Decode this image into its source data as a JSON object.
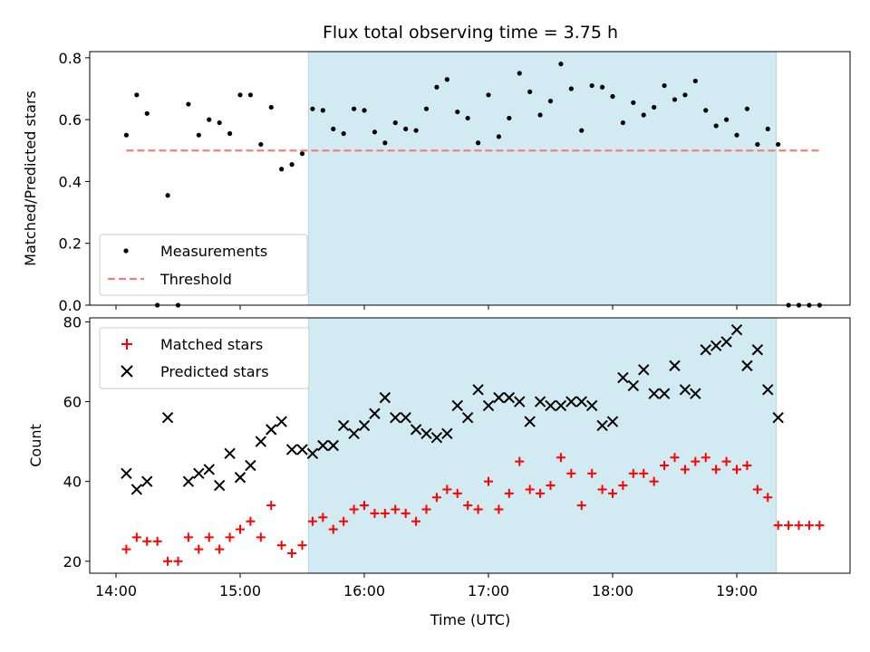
{
  "chart_data": [
    {
      "type": "scatter",
      "title": "Flux total observing time = 3.75 h",
      "xlabel": "",
      "ylabel": "Matched/Predicted stars",
      "ylim": [
        0,
        0.82
      ],
      "yticks": [
        "0.0",
        "0.2",
        "0.4",
        "0.6",
        "0.8"
      ],
      "shaded_region": {
        "x_start": "15:33",
        "x_end": "19:19",
        "color": "#add8e6"
      },
      "legend": "lower-left",
      "series": [
        {
          "name": "Measurements",
          "color": "#000000",
          "marker": "dot",
          "points": [
            [
              "14:05",
              0.55
            ],
            [
              "14:10",
              0.68
            ],
            [
              "14:15",
              0.62
            ],
            [
              "14:20",
              0.0
            ],
            [
              "14:25",
              0.355
            ],
            [
              "14:30",
              0.0
            ],
            [
              "14:35",
              0.65
            ],
            [
              "14:40",
              0.55
            ],
            [
              "14:45",
              0.6
            ],
            [
              "14:50",
              0.59
            ],
            [
              "14:55",
              0.555
            ],
            [
              "15:00",
              0.68
            ],
            [
              "15:05",
              0.68
            ],
            [
              "15:10",
              0.52
            ],
            [
              "15:15",
              0.64
            ],
            [
              "15:20",
              0.44
            ],
            [
              "15:25",
              0.455
            ],
            [
              "15:30",
              0.49
            ],
            [
              "15:35",
              0.635
            ],
            [
              "15:40",
              0.63
            ],
            [
              "15:45",
              0.57
            ],
            [
              "15:50",
              0.555
            ],
            [
              "15:55",
              0.635
            ],
            [
              "16:00",
              0.63
            ],
            [
              "16:05",
              0.56
            ],
            [
              "16:10",
              0.525
            ],
            [
              "16:15",
              0.59
            ],
            [
              "16:20",
              0.57
            ],
            [
              "16:25",
              0.565
            ],
            [
              "16:30",
              0.635
            ],
            [
              "16:35",
              0.705
            ],
            [
              "16:40",
              0.73
            ],
            [
              "16:45",
              0.625
            ],
            [
              "16:50",
              0.605
            ],
            [
              "16:55",
              0.525
            ],
            [
              "17:00",
              0.68
            ],
            [
              "17:05",
              0.545
            ],
            [
              "17:10",
              0.605
            ],
            [
              "17:15",
              0.75
            ],
            [
              "17:20",
              0.69
            ],
            [
              "17:25",
              0.615
            ],
            [
              "17:30",
              0.66
            ],
            [
              "17:35",
              0.78
            ],
            [
              "17:40",
              0.7
            ],
            [
              "17:45",
              0.565
            ],
            [
              "17:50",
              0.71
            ],
            [
              "17:55",
              0.705
            ],
            [
              "18:00",
              0.675
            ],
            [
              "18:05",
              0.59
            ],
            [
              "18:10",
              0.655
            ],
            [
              "18:15",
              0.615
            ],
            [
              "18:20",
              0.64
            ],
            [
              "18:25",
              0.71
            ],
            [
              "18:30",
              0.665
            ],
            [
              "18:35",
              0.68
            ],
            [
              "18:40",
              0.725
            ],
            [
              "18:45",
              0.63
            ],
            [
              "18:50",
              0.58
            ],
            [
              "18:55",
              0.6
            ],
            [
              "19:00",
              0.55
            ],
            [
              "19:05",
              0.635
            ],
            [
              "19:10",
              0.52
            ],
            [
              "19:15",
              0.57
            ],
            [
              "19:20",
              0.52
            ],
            [
              "19:25",
              0.0
            ],
            [
              "19:30",
              0.0
            ],
            [
              "19:35",
              0.0
            ],
            [
              "19:40",
              0.0
            ]
          ]
        },
        {
          "name": "Threshold",
          "color": "#f08080",
          "style": "dashed",
          "points": [
            [
              "14:05",
              0.5
            ],
            [
              "19:40",
              0.5
            ]
          ]
        }
      ]
    },
    {
      "type": "scatter",
      "title": "",
      "xlabel": "Time (UTC)",
      "ylabel": "Count",
      "ylim": [
        17,
        81
      ],
      "yticks": [
        "20",
        "40",
        "60",
        "80"
      ],
      "xticks": [
        "14:00",
        "15:00",
        "16:00",
        "17:00",
        "18:00",
        "19:00"
      ],
      "shaded_region": {
        "x_start": "15:33",
        "x_end": "19:19",
        "color": "#add8e6"
      },
      "legend": "upper-left",
      "series": [
        {
          "name": "Matched stars",
          "color": "#ff0000",
          "marker": "plus",
          "points": [
            [
              "14:05",
              23
            ],
            [
              "14:10",
              26
            ],
            [
              "14:15",
              25
            ],
            [
              "14:20",
              25
            ],
            [
              "14:25",
              20
            ],
            [
              "14:30",
              20
            ],
            [
              "14:35",
              26
            ],
            [
              "14:40",
              23
            ],
            [
              "14:45",
              26
            ],
            [
              "14:50",
              23
            ],
            [
              "14:55",
              26
            ],
            [
              "15:00",
              28
            ],
            [
              "15:05",
              30
            ],
            [
              "15:10",
              26
            ],
            [
              "15:15",
              34
            ],
            [
              "15:20",
              24
            ],
            [
              "15:25",
              22
            ],
            [
              "15:30",
              24
            ],
            [
              "15:35",
              30
            ],
            [
              "15:40",
              31
            ],
            [
              "15:45",
              28
            ],
            [
              "15:50",
              30
            ],
            [
              "15:55",
              33
            ],
            [
              "16:00",
              34
            ],
            [
              "16:05",
              32
            ],
            [
              "16:10",
              32
            ],
            [
              "16:15",
              33
            ],
            [
              "16:20",
              32
            ],
            [
              "16:25",
              30
            ],
            [
              "16:30",
              33
            ],
            [
              "16:35",
              36
            ],
            [
              "16:40",
              38
            ],
            [
              "16:45",
              37
            ],
            [
              "16:50",
              34
            ],
            [
              "16:55",
              33
            ],
            [
              "17:00",
              40
            ],
            [
              "17:05",
              33
            ],
            [
              "17:10",
              37
            ],
            [
              "17:15",
              45
            ],
            [
              "17:20",
              38
            ],
            [
              "17:25",
              37
            ],
            [
              "17:30",
              39
            ],
            [
              "17:35",
              46
            ],
            [
              "17:40",
              42
            ],
            [
              "17:45",
              34
            ],
            [
              "17:50",
              42
            ],
            [
              "17:55",
              38
            ],
            [
              "18:00",
              37
            ],
            [
              "18:05",
              39
            ],
            [
              "18:10",
              42
            ],
            [
              "18:15",
              42
            ],
            [
              "18:20",
              40
            ],
            [
              "18:25",
              44
            ],
            [
              "18:30",
              46
            ],
            [
              "18:35",
              43
            ],
            [
              "18:40",
              45
            ],
            [
              "18:45",
              46
            ],
            [
              "18:50",
              43
            ],
            [
              "18:55",
              45
            ],
            [
              "19:00",
              43
            ],
            [
              "19:05",
              44
            ],
            [
              "19:10",
              38
            ],
            [
              "19:15",
              36
            ],
            [
              "19:20",
              29
            ],
            [
              "19:25",
              29
            ],
            [
              "19:30",
              29
            ],
            [
              "19:35",
              29
            ],
            [
              "19:40",
              29
            ]
          ]
        },
        {
          "name": "Predicted stars",
          "color": "#000000",
          "marker": "x",
          "points": [
            [
              "14:05",
              42
            ],
            [
              "14:10",
              38
            ],
            [
              "14:15",
              40
            ],
            [
              "14:25",
              56
            ],
            [
              "14:35",
              40
            ],
            [
              "14:40",
              42
            ],
            [
              "14:45",
              43
            ],
            [
              "14:50",
              39
            ],
            [
              "14:55",
              47
            ],
            [
              "15:00",
              41
            ],
            [
              "15:05",
              44
            ],
            [
              "15:10",
              50
            ],
            [
              "15:15",
              53
            ],
            [
              "15:20",
              55
            ],
            [
              "15:25",
              48
            ],
            [
              "15:30",
              48
            ],
            [
              "15:35",
              47
            ],
            [
              "15:40",
              49
            ],
            [
              "15:45",
              49
            ],
            [
              "15:50",
              54
            ],
            [
              "15:55",
              52
            ],
            [
              "16:00",
              54
            ],
            [
              "16:05",
              57
            ],
            [
              "16:10",
              61
            ],
            [
              "16:15",
              56
            ],
            [
              "16:20",
              56
            ],
            [
              "16:25",
              53
            ],
            [
              "16:30",
              52
            ],
            [
              "16:35",
              51
            ],
            [
              "16:40",
              52
            ],
            [
              "16:45",
              59
            ],
            [
              "16:50",
              56
            ],
            [
              "16:55",
              63
            ],
            [
              "17:00",
              59
            ],
            [
              "17:05",
              61
            ],
            [
              "17:10",
              61
            ],
            [
              "17:15",
              60
            ],
            [
              "17:20",
              55
            ],
            [
              "17:25",
              60
            ],
            [
              "17:30",
              59
            ],
            [
              "17:35",
              59
            ],
            [
              "17:40",
              60
            ],
            [
              "17:45",
              60
            ],
            [
              "17:50",
              59
            ],
            [
              "17:55",
              54
            ],
            [
              "18:00",
              55
            ],
            [
              "18:05",
              66
            ],
            [
              "18:10",
              64
            ],
            [
              "18:15",
              68
            ],
            [
              "18:20",
              62
            ],
            [
              "18:25",
              62
            ],
            [
              "18:30",
              69
            ],
            [
              "18:35",
              63
            ],
            [
              "18:40",
              62
            ],
            [
              "18:45",
              73
            ],
            [
              "18:50",
              74
            ],
            [
              "18:55",
              75
            ],
            [
              "19:00",
              78
            ],
            [
              "19:05",
              69
            ],
            [
              "19:10",
              73
            ],
            [
              "19:15",
              63
            ],
            [
              "19:20",
              56
            ]
          ]
        }
      ]
    }
  ]
}
